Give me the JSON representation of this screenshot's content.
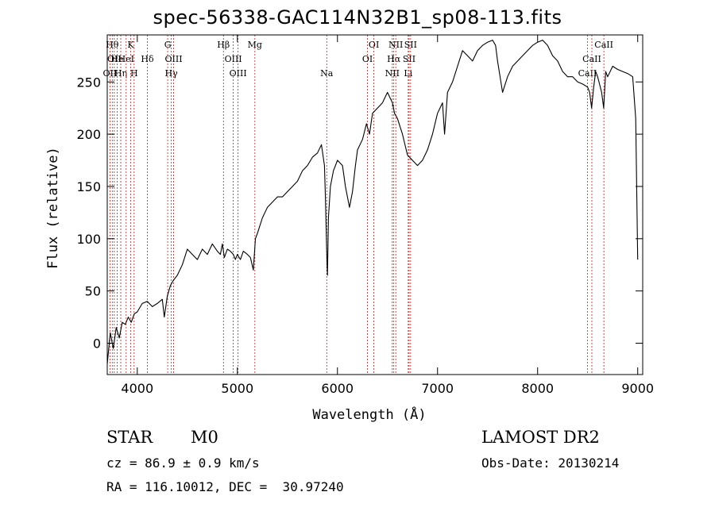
{
  "chart_data": {
    "type": "line",
    "title": "spec-56338-GAC114N32B1_sp08-113.fits",
    "xlabel": "Wavelength (Å)",
    "ylabel": "Flux (relative)",
    "xlim": [
      3700,
      9050
    ],
    "ylim": [
      -30,
      295
    ],
    "xticks": [
      4000,
      5000,
      6000,
      7000,
      8000,
      9000
    ],
    "yticks": [
      0,
      50,
      100,
      150,
      200,
      250
    ],
    "grid": false,
    "series": [
      {
        "color": "#000000",
        "x": [
          3700,
          3730,
          3760,
          3790,
          3820,
          3850,
          3880,
          3910,
          3940,
          3970,
          4000,
          4050,
          4100,
          4150,
          4200,
          4250,
          4270,
          4300,
          4330,
          4360,
          4400,
          4450,
          4500,
          4550,
          4600,
          4650,
          4700,
          4750,
          4800,
          4830,
          4850,
          4870,
          4900,
          4930,
          4960,
          4980,
          5000,
          5030,
          5060,
          5100,
          5130,
          5160,
          5180,
          5200,
          5250,
          5300,
          5350,
          5400,
          5450,
          5500,
          5550,
          5600,
          5650,
          5700,
          5750,
          5800,
          5840,
          5870,
          5880,
          5895,
          5900,
          5910,
          5930,
          5960,
          6000,
          6050,
          6080,
          6120,
          6150,
          6180,
          6200,
          6250,
          6290,
          6320,
          6350,
          6400,
          6450,
          6500,
          6550,
          6570,
          6600,
          6650,
          6700,
          6750,
          6800,
          6850,
          6900,
          6950,
          7000,
          7050,
          7070,
          7100,
          7150,
          7200,
          7250,
          7300,
          7350,
          7400,
          7450,
          7500,
          7550,
          7580,
          7600,
          7650,
          7700,
          7750,
          7800,
          7850,
          7900,
          7950,
          8000,
          8050,
          8100,
          8150,
          8200,
          8250,
          8300,
          8350,
          8400,
          8450,
          8500,
          8520,
          8540,
          8560,
          8580,
          8600,
          8640,
          8660,
          8680,
          8700,
          8750,
          8800,
          8850,
          8900,
          8950,
          8980,
          9000
        ],
        "y": [
          -20,
          10,
          -5,
          15,
          5,
          20,
          18,
          25,
          20,
          28,
          30,
          38,
          40,
          35,
          38,
          42,
          25,
          45,
          55,
          60,
          65,
          75,
          90,
          85,
          80,
          90,
          85,
          95,
          88,
          85,
          95,
          82,
          90,
          88,
          85,
          80,
          85,
          80,
          88,
          85,
          82,
          70,
          100,
          105,
          120,
          130,
          135,
          140,
          140,
          145,
          150,
          155,
          165,
          170,
          178,
          182,
          190,
          170,
          140,
          80,
          65,
          120,
          150,
          165,
          175,
          170,
          150,
          130,
          145,
          170,
          185,
          195,
          210,
          200,
          220,
          225,
          230,
          240,
          230,
          220,
          215,
          200,
          180,
          175,
          170,
          175,
          185,
          200,
          220,
          230,
          200,
          240,
          250,
          265,
          280,
          275,
          270,
          280,
          285,
          288,
          290,
          285,
          270,
          240,
          255,
          265,
          270,
          275,
          280,
          285,
          288,
          290,
          285,
          275,
          270,
          260,
          255,
          255,
          250,
          248,
          245,
          240,
          225,
          245,
          260,
          255,
          240,
          225,
          260,
          255,
          265,
          262,
          260,
          258,
          255,
          215,
          80
        ]
      }
    ],
    "lines": [
      {
        "x": 3750,
        "label": "Hθ",
        "row": 0
      },
      {
        "x": 3770,
        "label": "OII",
        "row": 1
      },
      {
        "x": 3727,
        "label": "OII",
        "row": 2
      },
      {
        "x": 3799,
        "label": "He",
        "row": 1
      },
      {
        "x": 3835,
        "label": "Hη",
        "row": 2
      },
      {
        "x": 3889,
        "label": "HeI",
        "row": 1
      },
      {
        "x": 3934,
        "label": "K",
        "row": 0
      },
      {
        "x": 3968,
        "label": "H",
        "row": 2
      },
      {
        "x": 4101,
        "label": "Hδ",
        "row": 1
      },
      {
        "x": 4304,
        "label": "G",
        "row": 0
      },
      {
        "x": 4340,
        "label": "Hγ",
        "row": 2
      },
      {
        "x": 4363,
        "label": "OIII",
        "row": 1
      },
      {
        "x": 4861,
        "label": "Hβ",
        "row": 0
      },
      {
        "x": 4959,
        "label": "OIII",
        "row": 1
      },
      {
        "x": 5007,
        "label": "OIII",
        "row": 2
      },
      {
        "x": 5175,
        "label": "Mg",
        "row": 0
      },
      {
        "x": 5893,
        "label": "Na",
        "row": 2
      },
      {
        "x": 6300,
        "label": "OI",
        "row": 1
      },
      {
        "x": 6364,
        "label": "OI",
        "row": 0
      },
      {
        "x": 6548,
        "label": "NII",
        "row": 2
      },
      {
        "x": 6563,
        "label": "Hα",
        "row": 1
      },
      {
        "x": 6583,
        "label": "NII",
        "row": 0
      },
      {
        "x": 6707,
        "label": "Li",
        "row": 2
      },
      {
        "x": 6716,
        "label": "SII",
        "row": 1
      },
      {
        "x": 6731,
        "label": "SII",
        "row": 0
      },
      {
        "x": 8498,
        "label": "CaII",
        "row": 2
      },
      {
        "x": 8542,
        "label": "CaII",
        "row": 1
      },
      {
        "x": 8662,
        "label": "CaII",
        "row": 0
      }
    ]
  },
  "info": {
    "class": "STAR",
    "subclass": "M0",
    "survey": "LAMOST DR2",
    "cz": "cz = 86.9 ± 0.9 km/s",
    "obs_date": "Obs-Date: 20130214",
    "coords": "RA = 116.10012, DEC =  30.97240"
  }
}
